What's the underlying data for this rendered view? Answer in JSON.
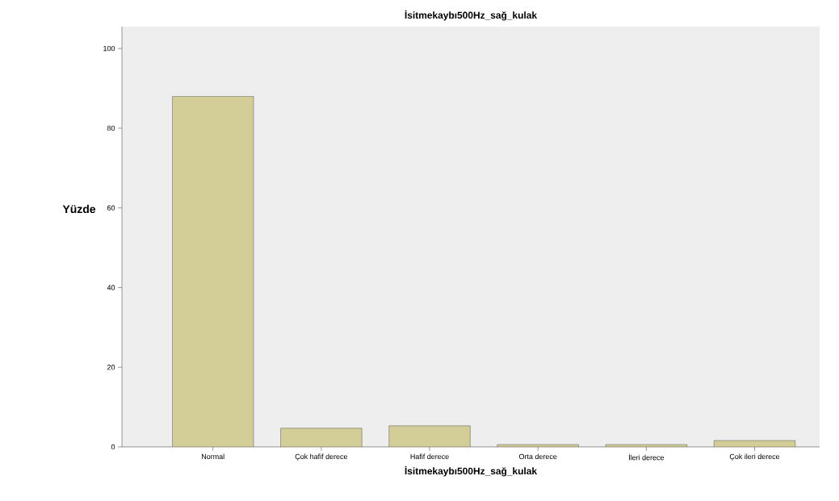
{
  "chart_data": {
    "type": "bar",
    "title": "İsitmekaybı500Hz_sağ_kulak",
    "xlabel": "İsitmekaybı500Hz_sağ_kulak",
    "ylabel": "Yüzde",
    "categories": [
      "Normal",
      "Çok hafif derece",
      "Hafif derece",
      "Orta derece",
      "İleri derece",
      "Çok ileri derece"
    ],
    "values": [
      88.0,
      4.7,
      5.3,
      0.6,
      0.6,
      1.6
    ],
    "color": "#d3cd98",
    "ylim": [
      0,
      105.5
    ],
    "yticks": [
      0,
      20,
      40,
      60,
      80,
      100
    ],
    "grid": false
  }
}
